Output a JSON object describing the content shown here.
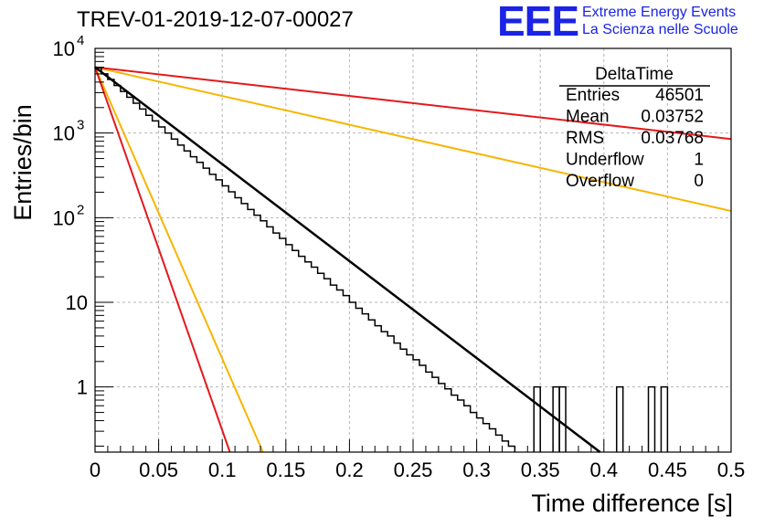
{
  "header": {
    "title": "TREV-01-2019-12-07-00027",
    "logo_text": "EEE",
    "logo_line1": "Extreme Energy Events",
    "logo_line2": "La Scienza nelle Scuole"
  },
  "stats_box": {
    "title": "DeltaTime",
    "rows": [
      {
        "label": "Entries",
        "value": "46501"
      },
      {
        "label": "Mean",
        "value": "0.03752"
      },
      {
        "label": "RMS",
        "value": "0.03768"
      },
      {
        "label": "Underflow",
        "value": "1"
      },
      {
        "label": "Overflow",
        "value": "0"
      }
    ]
  },
  "colors": {
    "histogram": "#000000",
    "fit": "#000000",
    "red_lines": "#e3191c",
    "yellow_lines": "#f7b500",
    "grid": "#b4b4b4",
    "logo": "#1a23e6"
  },
  "chart_data": {
    "type": "histogram",
    "title": "TREV-01-2019-12-07-00027",
    "xlabel": "Time difference [s]",
    "ylabel": "Entries/bin",
    "xlim": [
      0,
      0.5
    ],
    "ylim": [
      0.17,
      10000
    ],
    "yscale": "log",
    "grid": true,
    "xticks": [
      "0",
      "0.05",
      "0.1",
      "0.15",
      "0.2",
      "0.25",
      "0.3",
      "0.35",
      "0.4",
      "0.45",
      "0.5"
    ],
    "yticks": [
      {
        "value": 1,
        "label": "1"
      },
      {
        "value": 10,
        "label": "10"
      },
      {
        "value": 100,
        "label": "10",
        "exp": "2"
      },
      {
        "value": 1000,
        "label": "10",
        "exp": "3"
      },
      {
        "value": 10000,
        "label": "10",
        "exp": "4"
      }
    ],
    "bin_width": 0.005,
    "histogram": [
      {
        "x": 0.0,
        "y": 5900
      },
      {
        "x": 0.005,
        "y": 5000
      },
      {
        "x": 0.01,
        "y": 4300
      },
      {
        "x": 0.015,
        "y": 3650
      },
      {
        "x": 0.02,
        "y": 3100
      },
      {
        "x": 0.025,
        "y": 2650
      },
      {
        "x": 0.03,
        "y": 2250
      },
      {
        "x": 0.035,
        "y": 1920
      },
      {
        "x": 0.04,
        "y": 1620
      },
      {
        "x": 0.045,
        "y": 1390
      },
      {
        "x": 0.05,
        "y": 1180
      },
      {
        "x": 0.055,
        "y": 1000
      },
      {
        "x": 0.06,
        "y": 850
      },
      {
        "x": 0.065,
        "y": 720
      },
      {
        "x": 0.07,
        "y": 615
      },
      {
        "x": 0.075,
        "y": 525
      },
      {
        "x": 0.08,
        "y": 450
      },
      {
        "x": 0.085,
        "y": 385
      },
      {
        "x": 0.09,
        "y": 325
      },
      {
        "x": 0.095,
        "y": 280
      },
      {
        "x": 0.1,
        "y": 238
      },
      {
        "x": 0.105,
        "y": 202
      },
      {
        "x": 0.11,
        "y": 172
      },
      {
        "x": 0.115,
        "y": 147
      },
      {
        "x": 0.12,
        "y": 125
      },
      {
        "x": 0.125,
        "y": 107
      },
      {
        "x": 0.13,
        "y": 92
      },
      {
        "x": 0.135,
        "y": 78
      },
      {
        "x": 0.14,
        "y": 66
      },
      {
        "x": 0.145,
        "y": 57
      },
      {
        "x": 0.15,
        "y": 48
      },
      {
        "x": 0.155,
        "y": 41
      },
      {
        "x": 0.16,
        "y": 35
      },
      {
        "x": 0.165,
        "y": 30
      },
      {
        "x": 0.17,
        "y": 26
      },
      {
        "x": 0.175,
        "y": 22
      },
      {
        "x": 0.18,
        "y": 19
      },
      {
        "x": 0.185,
        "y": 16
      },
      {
        "x": 0.19,
        "y": 14
      },
      {
        "x": 0.195,
        "y": 12
      },
      {
        "x": 0.2,
        "y": 10
      },
      {
        "x": 0.205,
        "y": 8.5
      },
      {
        "x": 0.21,
        "y": 7.3
      },
      {
        "x": 0.215,
        "y": 6.2
      },
      {
        "x": 0.22,
        "y": 5.3
      },
      {
        "x": 0.225,
        "y": 4.5
      },
      {
        "x": 0.23,
        "y": 4.0
      },
      {
        "x": 0.235,
        "y": 3.3
      },
      {
        "x": 0.24,
        "y": 2.8
      },
      {
        "x": 0.245,
        "y": 2.4
      },
      {
        "x": 0.25,
        "y": 2.1
      },
      {
        "x": 0.255,
        "y": 1.8
      },
      {
        "x": 0.26,
        "y": 1.5
      },
      {
        "x": 0.265,
        "y": 1.3
      },
      {
        "x": 0.27,
        "y": 1.1
      },
      {
        "x": 0.275,
        "y": 0.95
      },
      {
        "x": 0.28,
        "y": 0.8
      },
      {
        "x": 0.285,
        "y": 0.7
      },
      {
        "x": 0.29,
        "y": 0.6
      },
      {
        "x": 0.295,
        "y": 0.5
      },
      {
        "x": 0.3,
        "y": 0.43
      },
      {
        "x": 0.305,
        "y": 0.37
      },
      {
        "x": 0.31,
        "y": 0.32
      },
      {
        "x": 0.315,
        "y": 0.27
      },
      {
        "x": 0.32,
        "y": 0.23
      },
      {
        "x": 0.325,
        "y": 0.2
      }
    ],
    "isolated_bins": [
      {
        "x": 0.33,
        "y": 0
      },
      {
        "x": 0.335,
        "y": 0
      },
      {
        "x": 0.345,
        "y": 1
      },
      {
        "x": 0.355,
        "y": 0
      },
      {
        "x": 0.36,
        "y": 1
      },
      {
        "x": 0.365,
        "y": 1
      },
      {
        "x": 0.37,
        "y": 0
      },
      {
        "x": 0.39,
        "y": 0
      },
      {
        "x": 0.4,
        "y": 0
      },
      {
        "x": 0.405,
        "y": 0
      },
      {
        "x": 0.41,
        "y": 1
      },
      {
        "x": 0.415,
        "y": 0
      },
      {
        "x": 0.435,
        "y": 1
      },
      {
        "x": 0.44,
        "y": 0
      },
      {
        "x": 0.445,
        "y": 1
      },
      {
        "x": 0.45,
        "y": 0
      }
    ],
    "fit_line": {
      "x": [
        0.0,
        0.397
      ],
      "y": [
        6000,
        0.17
      ]
    },
    "red_lines": [
      {
        "x": [
          0.0,
          0.5
        ],
        "y": [
          6000,
          850
        ]
      },
      {
        "x": [
          0.0,
          0.106
        ],
        "y": [
          6000,
          0.17
        ]
      }
    ],
    "yellow_lines": [
      {
        "x": [
          0.0,
          0.5
        ],
        "y": [
          6000,
          120
        ]
      },
      {
        "x": [
          0.0,
          0.132
        ],
        "y": [
          6000,
          0.17
        ]
      }
    ]
  }
}
